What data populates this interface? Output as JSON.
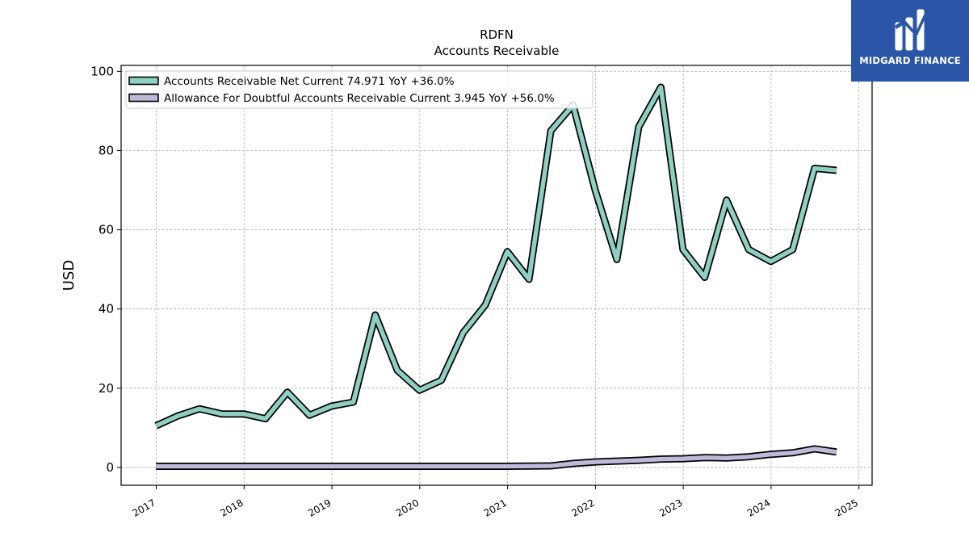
{
  "chart_data": {
    "type": "line",
    "title": "RDFN",
    "subtitle": "Accounts Receivable",
    "ylabel": "USD",
    "xlabel": "",
    "ylim": [
      -4.5,
      101.5
    ],
    "yticks": [
      0,
      20,
      40,
      60,
      80,
      100
    ],
    "xlim": [
      2016.6,
      2025.15
    ],
    "xticks": [
      "2017",
      "2018",
      "2019",
      "2020",
      "2021",
      "2022",
      "2023",
      "2024",
      "2025"
    ],
    "grid": true,
    "legend_position": "top-left",
    "x": [
      "2016-12-31",
      "2017-03-31",
      "2017-06-30",
      "2017-09-30",
      "2017-12-31",
      "2018-03-31",
      "2018-06-30",
      "2018-09-30",
      "2018-12-31",
      "2019-03-31",
      "2019-06-30",
      "2019-09-30",
      "2019-12-31",
      "2020-03-31",
      "2020-06-30",
      "2020-09-30",
      "2020-12-31",
      "2021-03-31",
      "2021-06-30",
      "2021-09-30",
      "2021-12-31",
      "2022-03-31",
      "2022-06-30",
      "2022-09-30",
      "2022-12-31",
      "2023-03-31",
      "2023-06-30",
      "2023-09-30",
      "2023-12-31",
      "2024-03-31",
      "2024-06-30",
      "2024-09-30"
    ],
    "series": [
      {
        "name": "Accounts Receivable Net Current",
        "legend": "Accounts Receivable Net Current  74.971 YoY +36.0%",
        "color": "#8ecfc2",
        "values": [
          10.5,
          13,
          14.8,
          13.5,
          13.5,
          12.3,
          19,
          13.2,
          15.5,
          16.5,
          38.5,
          24.5,
          19.5,
          22,
          34,
          41,
          54.5,
          47.5,
          85,
          91.5,
          70,
          52.5,
          86,
          96,
          55,
          48,
          67.5,
          55,
          52,
          55,
          75.5,
          75
        ]
      },
      {
        "name": "Allowance For Doubtful Accounts Receivable Current",
        "legend": "Allowance For Doubtful Accounts Receivable Current  3.945 YoY +56.0%",
        "color": "#bcb9d9",
        "values": [
          0.3,
          0.3,
          0.3,
          0.3,
          0.3,
          0.3,
          0.3,
          0.3,
          0.3,
          0.3,
          0.3,
          0.3,
          0.3,
          0.3,
          0.3,
          0.3,
          0.3,
          0.35,
          0.4,
          1.0,
          1.4,
          1.6,
          1.8,
          2.1,
          2.2,
          2.5,
          2.4,
          2.7,
          3.3,
          3.7,
          4.7,
          3.9
        ]
      }
    ]
  },
  "logo": {
    "text": "MIDGARD FINANCE",
    "bg_color": "#2b56a8"
  }
}
